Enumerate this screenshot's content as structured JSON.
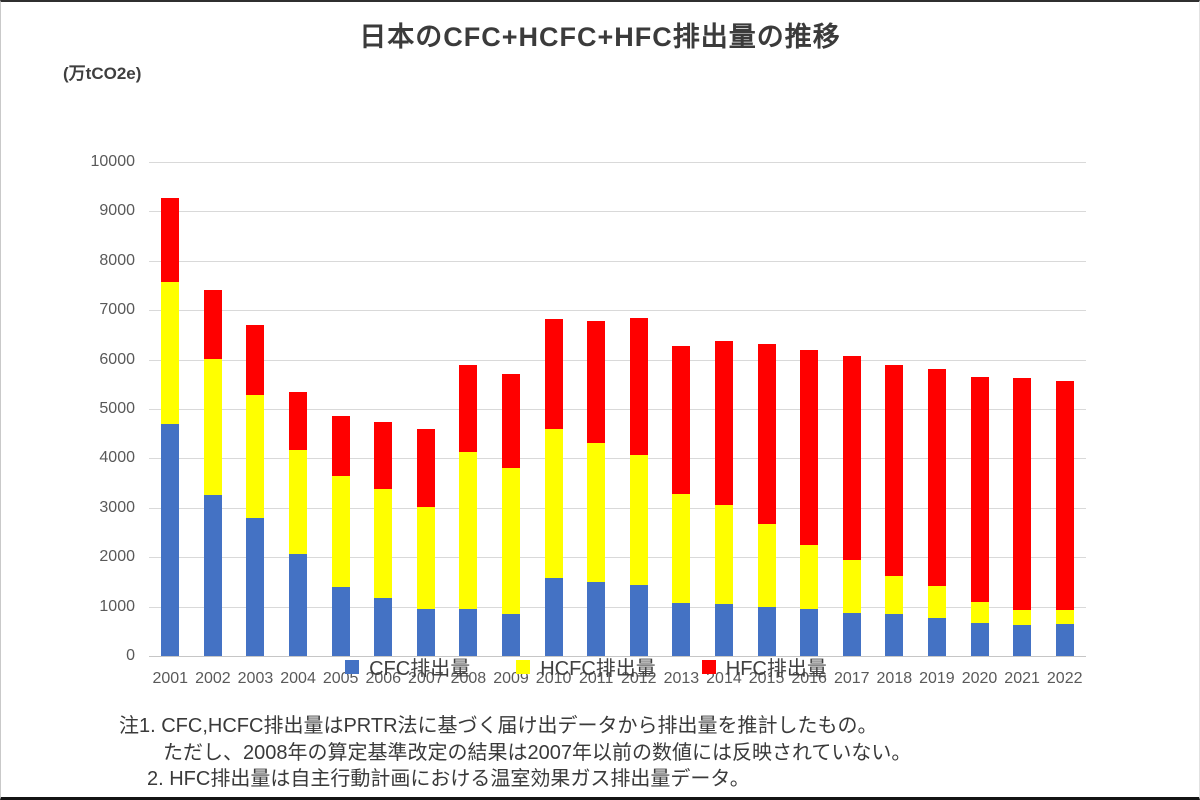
{
  "page": {
    "title": "日本のCFC+HCFC+HFC排出量の推移",
    "unit_label": "(万tCO2e)"
  },
  "chart_data": {
    "type": "bar",
    "stacked": true,
    "title": "日本のCFC+HCFC+HFC排出量の推移",
    "ylabel": "(万tCO2e)",
    "xlabel": "",
    "ylim": [
      0,
      10000
    ],
    "y_ticks": [
      0,
      1000,
      2000,
      3000,
      4000,
      5000,
      6000,
      7000,
      8000,
      9000,
      10000
    ],
    "grid": "horizontal",
    "legend_position": "bottom",
    "categories": [
      "2001",
      "2002",
      "2003",
      "2004",
      "2005",
      "2006",
      "2007",
      "2008",
      "2009",
      "2010",
      "2011",
      "2012",
      "2013",
      "2014",
      "2015",
      "2016",
      "2017",
      "2018",
      "2019",
      "2020",
      "2021",
      "2022"
    ],
    "series": [
      {
        "key": "cfc",
        "name": "CFC排出量",
        "color": "#4472C4",
        "values": [
          4690,
          3250,
          2800,
          2070,
          1390,
          1180,
          950,
          950,
          850,
          1570,
          1500,
          1430,
          1080,
          1050,
          1000,
          950,
          880,
          850,
          770,
          670,
          620,
          650
        ]
      },
      {
        "key": "hcfc",
        "name": "HCFC排出量",
        "color": "#FFFF00",
        "values": [
          2890,
          2770,
          2490,
          2110,
          2250,
          2200,
          2060,
          3170,
          2950,
          3020,
          2820,
          2630,
          2190,
          2010,
          1670,
          1300,
          1070,
          770,
          650,
          430,
          310,
          280
        ]
      },
      {
        "key": "hfc",
        "name": "HFC排出量",
        "color": "#FF0000",
        "values": [
          1700,
          1380,
          1410,
          1160,
          1210,
          1360,
          1580,
          1780,
          1900,
          2230,
          2470,
          2790,
          3010,
          3310,
          3650,
          3950,
          4120,
          4270,
          4390,
          4550,
          4690,
          4640
        ]
      }
    ],
    "totals": [
      9280,
      7400,
      6700,
      5340,
      4850,
      4740,
      4590,
      5900,
      5700,
      6820,
      6790,
      6850,
      6280,
      6370,
      6320,
      6200,
      6070,
      5890,
      5810,
      5650,
      5620,
      5570
    ]
  },
  "notes": {
    "line1": "注1. CFC,HCFC排出量はPRTR法に基づく届け出データから排出量を推計したもの。",
    "line2": "ただし、2008年の算定基準改定の結果は2007年以前の数値には反映されていない。",
    "line3": "2. HFC排出量は自主行動計画における温室効果ガス排出量データ。"
  },
  "colors": {
    "cfc_blue": "#4472C4",
    "hcfc_yellow": "#FFFF00",
    "hfc_red": "#FF0000",
    "gridline": "#D9D9D9",
    "axis_text": "#595959",
    "title_text": "#3B3B3B"
  }
}
